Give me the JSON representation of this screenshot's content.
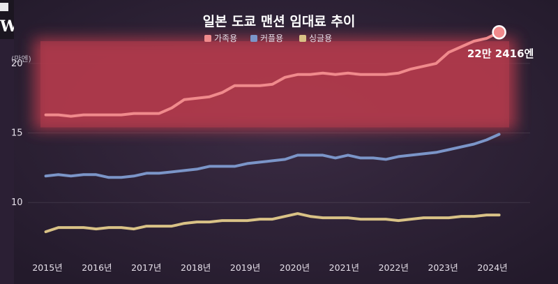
{
  "logo": {
    "text": "W"
  },
  "chart_data": {
    "type": "line",
    "title": "일본 도쿄 맨션 임대료 추이",
    "unit_label": "(만엔)",
    "x_ticks": [
      "2015년",
      "2016년",
      "2017년",
      "2018년",
      "2019년",
      "2020년",
      "2021년",
      "2022년",
      "2023년",
      "2024년"
    ],
    "y_ticks": [
      10,
      15,
      20
    ],
    "ylim": [
      7,
      21.8
    ],
    "x_range": [
      2015.2,
      2024.2
    ],
    "grid": true,
    "legend_position": "top-center",
    "series": [
      {
        "name": "가족용",
        "color": "#f08a8c",
        "x": [
          2015.25,
          2015.5,
          2015.75,
          2016.0,
          2016.25,
          2016.5,
          2016.75,
          2017.0,
          2017.25,
          2017.5,
          2017.75,
          2018.0,
          2018.25,
          2018.5,
          2018.75,
          2019.0,
          2019.25,
          2019.5,
          2019.75,
          2020.0,
          2020.25,
          2020.5,
          2020.75,
          2021.0,
          2021.25,
          2021.5,
          2021.75,
          2022.0,
          2022.25,
          2022.5,
          2022.75,
          2023.0,
          2023.25,
          2023.5,
          2023.75,
          2024.0,
          2024.25
        ],
        "values": [
          16.3,
          16.3,
          16.2,
          16.3,
          16.3,
          16.3,
          16.3,
          16.4,
          16.4,
          16.4,
          16.8,
          17.4,
          17.5,
          17.6,
          17.9,
          18.4,
          18.4,
          18.4,
          18.5,
          19.0,
          19.2,
          19.2,
          19.3,
          19.2,
          19.3,
          19.2,
          19.2,
          19.2,
          19.3,
          19.6,
          19.8,
          20.0,
          20.8,
          21.2,
          21.6,
          21.8,
          22.2416
        ]
      },
      {
        "name": "커플용",
        "color": "#7b95c8",
        "x": [
          2015.25,
          2015.5,
          2015.75,
          2016.0,
          2016.25,
          2016.5,
          2016.75,
          2017.0,
          2017.25,
          2017.5,
          2017.75,
          2018.0,
          2018.25,
          2018.5,
          2018.75,
          2019.0,
          2019.25,
          2019.5,
          2019.75,
          2020.0,
          2020.25,
          2020.5,
          2020.75,
          2021.0,
          2021.25,
          2021.5,
          2021.75,
          2022.0,
          2022.25,
          2022.5,
          2022.75,
          2023.0,
          2023.25,
          2023.5,
          2023.75,
          2024.0,
          2024.25
        ],
        "values": [
          11.9,
          12.0,
          11.9,
          12.0,
          12.0,
          11.8,
          11.8,
          11.9,
          12.1,
          12.1,
          12.2,
          12.3,
          12.4,
          12.6,
          12.6,
          12.6,
          12.8,
          12.9,
          13.0,
          13.1,
          13.4,
          13.4,
          13.4,
          13.2,
          13.4,
          13.2,
          13.2,
          13.1,
          13.3,
          13.4,
          13.5,
          13.6,
          13.8,
          14.0,
          14.2,
          14.5,
          14.9
        ]
      },
      {
        "name": "싱글용",
        "color": "#d9c286",
        "x": [
          2015.25,
          2015.5,
          2015.75,
          2016.0,
          2016.25,
          2016.5,
          2016.75,
          2017.0,
          2017.25,
          2017.5,
          2017.75,
          2018.0,
          2018.25,
          2018.5,
          2018.75,
          2019.0,
          2019.25,
          2019.5,
          2019.75,
          2020.0,
          2020.25,
          2020.5,
          2020.75,
          2021.0,
          2021.25,
          2021.5,
          2021.75,
          2022.0,
          2022.25,
          2022.5,
          2022.75,
          2023.0,
          2023.25,
          2023.5,
          2023.75,
          2024.0,
          2024.25
        ],
        "values": [
          7.9,
          8.2,
          8.2,
          8.2,
          8.1,
          8.2,
          8.2,
          8.1,
          8.3,
          8.3,
          8.3,
          8.5,
          8.6,
          8.6,
          8.7,
          8.7,
          8.7,
          8.8,
          8.8,
          9.0,
          9.2,
          9.0,
          8.9,
          8.9,
          8.9,
          8.8,
          8.8,
          8.8,
          8.7,
          8.8,
          8.9,
          8.9,
          8.9,
          9.0,
          9.0,
          9.1,
          9.1
        ]
      }
    ],
    "annotations": [
      {
        "text": "22만 2416엔",
        "series": "가족용",
        "x": 2024.25,
        "y": 22.2416
      }
    ],
    "highlight_band": {
      "y_from": 15.2,
      "y_to": 21.8,
      "color": "#b33b4c"
    }
  }
}
